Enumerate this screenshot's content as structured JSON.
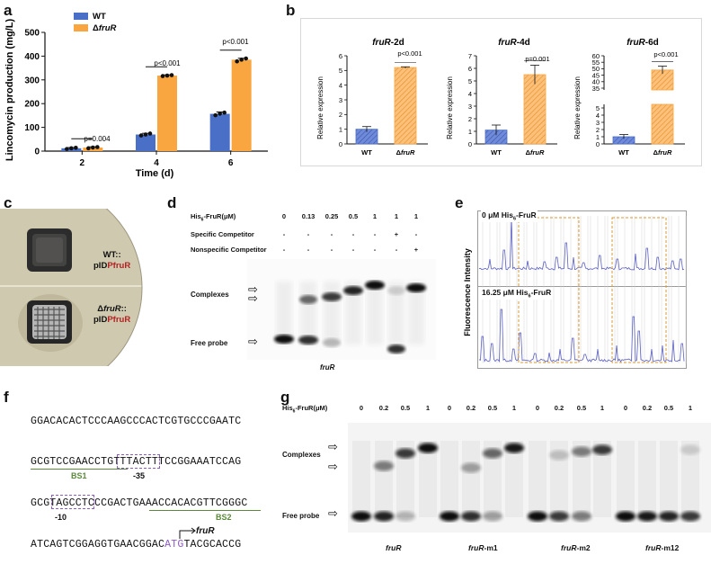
{
  "panels": {
    "a": "a",
    "b": "b",
    "c": "c",
    "d": "d",
    "e": "e",
    "f": "f",
    "g": "g"
  },
  "colors": {
    "wt": "#4a6fc7",
    "mutant": "#f9a640",
    "red": "#b22222",
    "purple": "#8a5bbf",
    "green": "#5a8a3a",
    "orange_box": "#d99a30",
    "trace": "#5a5fc0"
  },
  "panel_a": {
    "legend": [
      {
        "name": "WT"
      },
      {
        "name": "ΔfruR"
      }
    ],
    "ylabel": "Lincomycin production (mg/L)",
    "xlabel": "Time (d)",
    "pvalues": [
      "p=0.004",
      "p<0.001",
      "p<0.001"
    ]
  },
  "chart_data": [
    {
      "type": "bar",
      "categories": [
        "2",
        "4",
        "6"
      ],
      "series": [
        {
          "name": "WT",
          "values": [
            12,
            70,
            157
          ],
          "errors": [
            3,
            5,
            8
          ],
          "points": [
            [
              9,
              12,
              14
            ],
            [
              66,
              70,
              74
            ],
            [
              151,
              158,
              162
            ]
          ]
        },
        {
          "name": "ΔfruR",
          "values": [
            15,
            318,
            385
          ],
          "errors": [
            3,
            3,
            6
          ],
          "points": [
            [
              12,
              15,
              17
            ],
            [
              316,
              318,
              320
            ],
            [
              378,
              385,
              390
            ]
          ]
        }
      ],
      "ylabel": "Lincomycin production (mg/L)",
      "xlabel": "Time (d)",
      "ylim": [
        0,
        500
      ],
      "yticks": [
        0,
        100,
        200,
        300,
        400,
        500
      ],
      "annotations": [
        "p=0.004",
        "p<0.001",
        "p<0.001"
      ]
    },
    {
      "type": "bar",
      "title": "fruR-2d",
      "categories": [
        "WT",
        "ΔfruR"
      ],
      "values": [
        1.0,
        5.2
      ],
      "errors": [
        0.18,
        0.05
      ],
      "ylabel": "Relative expression",
      "ylim": [
        0,
        6
      ],
      "yticks": [
        0,
        1,
        2,
        3,
        4,
        5,
        6
      ],
      "annotations": [
        "p<0.001"
      ]
    },
    {
      "type": "bar",
      "title": "fruR-4d",
      "categories": [
        "WT",
        "ΔfruR"
      ],
      "values": [
        1.1,
        5.5
      ],
      "errors": [
        0.4,
        0.75
      ],
      "ylabel": "Relative expression",
      "ylim": [
        0,
        7
      ],
      "yticks": [
        0,
        1,
        2,
        3,
        4,
        5,
        6,
        7
      ],
      "annotations": [
        "p=0.001"
      ]
    },
    {
      "type": "bar",
      "title": "fruR-6d",
      "categories": [
        "WT",
        "ΔfruR"
      ],
      "values": [
        1.0,
        49
      ],
      "errors": [
        0.3,
        3
      ],
      "ylabel": "Relative expression",
      "ylim": [
        0,
        60
      ],
      "yticks": [
        0,
        1,
        2,
        3,
        4,
        5,
        35,
        40,
        45,
        50,
        55,
        60
      ],
      "annotations": [
        "p<0.001"
      ]
    }
  ],
  "panel_b": {
    "titles": [
      {
        "gene": "fruR",
        "suffix": "-2d"
      },
      {
        "gene": "fruR",
        "suffix": "-4d"
      },
      {
        "gene": "fruR",
        "suffix": "-6d"
      }
    ],
    "ylabel": "Relative expression",
    "xcats": [
      "WT",
      "ΔfruR"
    ],
    "pvalues": [
      "p<0.001",
      "p=0.001",
      "p<0.001"
    ]
  },
  "panel_c": {
    "wt_line1": "WT::",
    "wt_line2_pre": "pID",
    "wt_line2_red": "PfruR",
    "mut_line1": "ΔfruR::",
    "mut_line2_pre": "pID",
    "mut_line2_red": "PfruR"
  },
  "panel_d": {
    "row_labels": [
      "His6-FruR(μM)",
      "Specific Competitor",
      "Nonspecific Competitor"
    ],
    "conc": [
      "0",
      "0.13",
      "0.25",
      "0.5",
      "1",
      "1",
      "1"
    ],
    "specific": [
      "-",
      "-",
      "-",
      "-",
      "-",
      "+",
      "-"
    ],
    "nonspecific": [
      "-",
      "-",
      "-",
      "-",
      "-",
      "-",
      "+"
    ],
    "complexes": "Complexes",
    "free_probe": "Free probe",
    "gene": "fruR"
  },
  "panel_e": {
    "top_label": "0 μM His6-FruR",
    "bottom_label": "16.25 μM His6-FruR",
    "ylabel": "Fluorescence Intensity"
  },
  "panel_f": {
    "line1": "GGACACACTCCCAAGCCCACTCGTGCCCGAATC",
    "line2": "GCGTCCGAACCTGTTTACTTTCCGGAAATCCAG",
    "line3": "GCGTAGCCTCCCGACTGAAACCACACGTTCGGGC",
    "line4_a": "ATCAGTCGGAGGTGAACGGAC",
    "line4_atg": "ATG",
    "line4_b": "TACGCACCG",
    "bs1": "BS1",
    "bs2": "BS2",
    "m35": "-35",
    "m10": "-10",
    "gene": "fruR"
  },
  "panel_g": {
    "row_label": "His6-FruR(μM)",
    "conc": [
      "0",
      "0.2",
      "0.5",
      "1",
      "0",
      "0.2",
      "0.5",
      "1",
      "0",
      "0.2",
      "0.5",
      "1",
      "0",
      "0.2",
      "0.5",
      "1"
    ],
    "complexes": "Complexes",
    "free_probe": "Free probe",
    "genes": [
      {
        "g": "fruR",
        "s": ""
      },
      {
        "g": "fruR",
        "s": "-m1"
      },
      {
        "g": "fruR",
        "s": "-m2"
      },
      {
        "g": "fruR",
        "s": "-m12"
      }
    ]
  }
}
